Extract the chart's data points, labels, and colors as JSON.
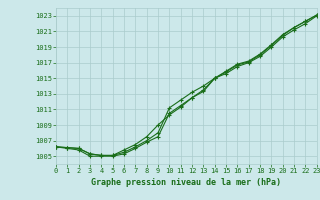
{
  "title": "Graphe pression niveau de la mer (hPa)",
  "bg_color": "#cce8ea",
  "grid_color": "#aacccc",
  "line_color": "#1a6e1a",
  "x_min": 0,
  "x_max": 23,
  "y_min": 1004,
  "y_max": 1024,
  "y_ticks": [
    1005,
    1007,
    1009,
    1011,
    1013,
    1015,
    1017,
    1019,
    1021,
    1023
  ],
  "x_ticks": [
    0,
    1,
    2,
    3,
    4,
    5,
    6,
    7,
    8,
    9,
    10,
    11,
    12,
    13,
    14,
    15,
    16,
    17,
    18,
    19,
    20,
    21,
    22,
    23
  ],
  "series1_x": [
    0,
    1,
    2,
    3,
    4,
    5,
    6,
    7,
    8,
    9,
    10,
    11,
    12,
    13,
    14,
    15,
    16,
    17,
    18,
    19,
    20,
    21,
    22,
    23
  ],
  "series1_y": [
    1006.2,
    1006.1,
    1006.0,
    1005.3,
    1005.1,
    1005.1,
    1005.8,
    1006.5,
    1007.5,
    1009.0,
    1010.3,
    1011.3,
    1012.5,
    1013.5,
    1015.0,
    1015.8,
    1016.7,
    1017.1,
    1018.0,
    1019.2,
    1020.5,
    1021.5,
    1022.3,
    1023.1
  ],
  "series2_x": [
    0,
    1,
    2,
    3,
    4,
    5,
    6,
    7,
    8,
    9,
    10,
    11,
    12,
    13,
    14,
    15,
    16,
    17,
    18,
    19,
    20,
    21,
    22,
    23
  ],
  "series2_y": [
    1006.2,
    1006.1,
    1006.0,
    1005.3,
    1005.1,
    1005.1,
    1005.5,
    1006.2,
    1007.0,
    1008.0,
    1011.2,
    1012.2,
    1013.2,
    1014.0,
    1015.0,
    1015.9,
    1016.8,
    1017.2,
    1018.1,
    1019.3,
    1020.6,
    1021.5,
    1022.3,
    1023.1
  ],
  "series3_x": [
    0,
    1,
    2,
    3,
    4,
    5,
    6,
    7,
    8,
    9,
    10,
    11,
    12,
    13,
    14,
    15,
    16,
    17,
    18,
    19,
    20,
    21,
    22,
    23
  ],
  "series3_y": [
    1006.2,
    1006.0,
    1005.8,
    1005.0,
    1005.0,
    1005.0,
    1005.3,
    1006.0,
    1006.8,
    1007.5,
    1010.5,
    1011.5,
    1012.5,
    1013.3,
    1015.0,
    1015.6,
    1016.5,
    1017.0,
    1017.8,
    1019.0,
    1020.3,
    1021.2,
    1022.0,
    1023.0
  ],
  "title_fontsize": 6,
  "tick_fontsize": 5
}
